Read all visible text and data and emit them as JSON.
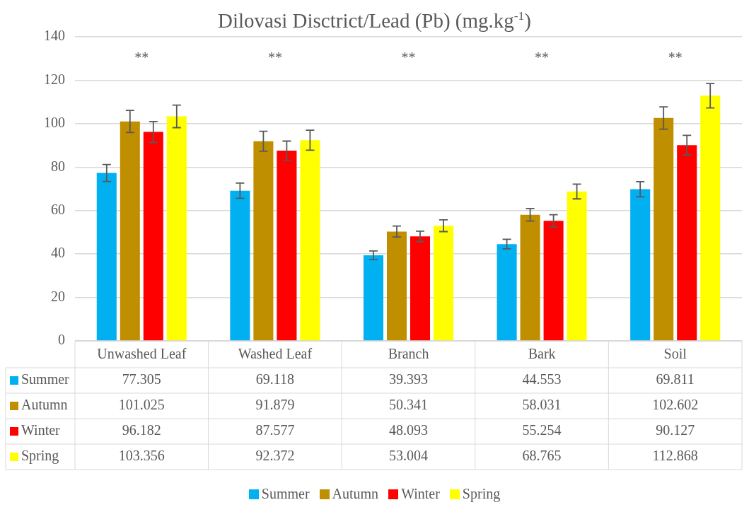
{
  "chart_data": {
    "type": "bar",
    "title": "Dilovasi Disctrict/Lead (Pb) (mg.kg$^{-1}$)",
    "categories": [
      "Unwashed Leaf",
      "Washed Leaf",
      "Branch",
      "Bark",
      "Soil"
    ],
    "series": [
      {
        "name": "Summer",
        "color": "#00b0f0",
        "values": [
          77.305,
          69.118,
          39.393,
          44.553,
          69.811
        ],
        "errors": [
          3.9,
          3.5,
          2.0,
          2.2,
          3.5
        ]
      },
      {
        "name": "Autumn",
        "color": "#bf8f00",
        "values": [
          101.025,
          91.879,
          50.341,
          58.031,
          102.602
        ],
        "errors": [
          5.1,
          4.6,
          2.5,
          2.9,
          5.1
        ]
      },
      {
        "name": "Winter",
        "color": "#ff0000",
        "values": [
          96.182,
          87.577,
          48.093,
          55.254,
          90.127
        ],
        "errors": [
          4.8,
          4.4,
          2.4,
          2.8,
          4.5
        ]
      },
      {
        "name": "Spring",
        "color": "#ffff00",
        "values": [
          103.356,
          92.372,
          53.004,
          68.765,
          112.868
        ],
        "errors": [
          5.2,
          4.6,
          2.7,
          3.4,
          5.6
        ]
      }
    ],
    "ylim": [
      0,
      140
    ],
    "yticks": [
      0,
      20,
      40,
      60,
      80,
      100,
      120,
      140
    ],
    "grid": "y",
    "legend": "bottom",
    "data_labels": true,
    "annotations": [
      "**",
      "**",
      "**",
      "**",
      "**"
    ]
  }
}
